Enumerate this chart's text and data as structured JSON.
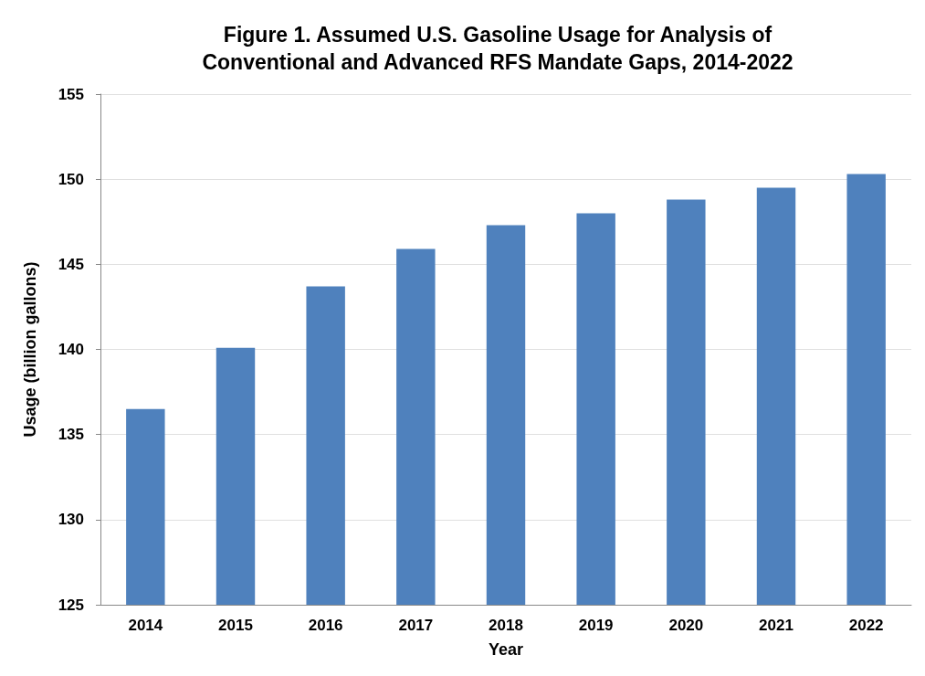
{
  "chart_data": {
    "type": "bar",
    "title": "Figure 1. Assumed U.S. Gasoline Usage for Analysis of\nConventional and Advanced RFS Mandate Gaps, 2014-2022",
    "xlabel": "Year",
    "ylabel": "Usage (billion gallons)",
    "categories": [
      "2014",
      "2015",
      "2016",
      "2017",
      "2018",
      "2019",
      "2020",
      "2021",
      "2022"
    ],
    "values": [
      136.5,
      140.1,
      143.7,
      145.9,
      147.3,
      148.0,
      148.8,
      149.5,
      150.3
    ],
    "color": "#4f81bd",
    "ylim": [
      125,
      155
    ],
    "yticks": [
      125,
      130,
      135,
      140,
      145,
      150,
      155
    ],
    "grid": "y"
  }
}
